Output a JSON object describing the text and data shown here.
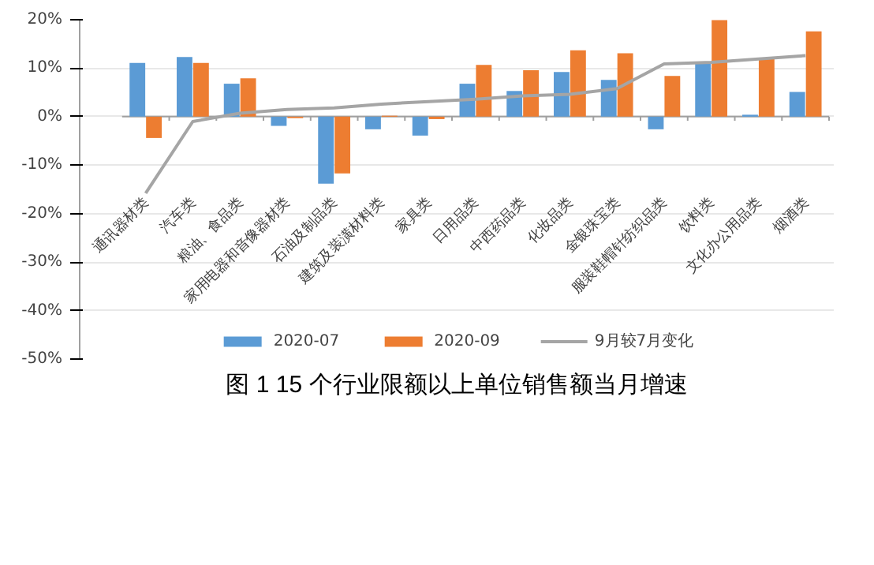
{
  "chart_data": {
    "type": "bar",
    "title": "图 1 15 个行业限额以上单位销售额当月增速",
    "categories": [
      "通讯器材类",
      "汽车类",
      "粮油、食品类",
      "家用电器和音像器材类",
      "石油及制品类",
      "建筑及装潢材料类",
      "家具类",
      "日用品类",
      "中西药品类",
      "化妆品类",
      "金银珠宝类",
      "服装鞋帽针纺织品类",
      "饮料类",
      "文化办公用品类",
      "烟酒类"
    ],
    "series": [
      {
        "name": "2020-07",
        "color": "#5b9bd5",
        "values": [
          11.1,
          12.3,
          6.8,
          -1.9,
          -13.8,
          -2.6,
          -3.9,
          6.8,
          5.3,
          9.2,
          7.6,
          -2.6,
          10.9,
          0.4,
          5.1
        ]
      },
      {
        "name": "2020-09",
        "color": "#ed7d31",
        "values": [
          -4.4,
          11.1,
          7.9,
          -0.3,
          -11.7,
          0.2,
          -0.5,
          10.7,
          9.6,
          13.7,
          13.1,
          8.4,
          19.9,
          12.2,
          17.6
        ]
      },
      {
        "name": "9月较7月变化",
        "type": "line",
        "color": "#a5a5a5",
        "values": [
          -15.8,
          -1.0,
          0.7,
          1.5,
          1.8,
          2.6,
          3.1,
          3.6,
          4.3,
          4.6,
          5.8,
          10.9,
          11.2,
          11.9,
          12.6
        ]
      }
    ],
    "ylim": [
      -50,
      20
    ],
    "yticks": [
      {
        "value": -50,
        "label": "-50%"
      },
      {
        "value": -40,
        "label": "-40%"
      },
      {
        "value": -30,
        "label": "-30%"
      },
      {
        "value": -20,
        "label": "-20%"
      },
      {
        "value": -10,
        "label": "-10%"
      },
      {
        "value": 0,
        "label": "0%"
      },
      {
        "value": 10,
        "label": "10%"
      },
      {
        "value": 20,
        "label": "20%"
      }
    ],
    "grid": "y",
    "legend": "bottom",
    "marker": "none",
    "line_style": "solid"
  }
}
